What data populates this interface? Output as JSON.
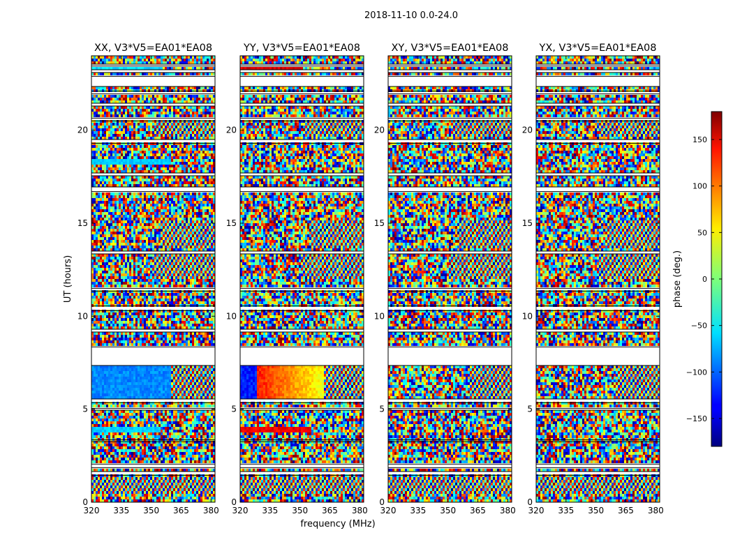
{
  "figure_title": "2018-11-10 0.0-24.0",
  "chart_data": {
    "type": "heatmap",
    "title": "2018-11-10 0.0-24.0",
    "xlabel": "frequency (MHz)",
    "ylabel": "UT (hours)",
    "xlim": [
      320,
      382
    ],
    "ylim": [
      0,
      24
    ],
    "x_ticks": [
      320,
      335,
      350,
      365,
      380
    ],
    "y_ticks": [
      0,
      5,
      10,
      15,
      20
    ],
    "panels": [
      {
        "title": "XX, V3*V5=EA01*EA08",
        "pol": "XX"
      },
      {
        "title": "YY, V3*V5=EA01*EA08",
        "pol": "YY"
      },
      {
        "title": "XY, V3*V5=EA01*EA08",
        "pol": "XY"
      },
      {
        "title": "YX, V3*V5=EA01*EA08",
        "pol": "YX"
      }
    ],
    "flagged_intervals_hours": [
      [
        1.45,
        1.65
      ],
      [
        1.85,
        2.05
      ],
      [
        3.25,
        3.35
      ],
      [
        4.95,
        5.05
      ],
      [
        5.35,
        5.55
      ],
      [
        7.35,
        8.35
      ],
      [
        9.15,
        9.3
      ],
      [
        10.3,
        10.55
      ],
      [
        11.35,
        11.5
      ],
      [
        13.35,
        13.5
      ],
      [
        16.7,
        16.95
      ],
      [
        17.55,
        17.7
      ],
      [
        19.3,
        19.5
      ],
      [
        20.5,
        20.65
      ],
      [
        21.3,
        21.45
      ],
      [
        21.95,
        22.1
      ],
      [
        22.35,
        22.9
      ],
      [
        23.1,
        23.25
      ],
      [
        23.45,
        23.55
      ]
    ],
    "colorbar": {
      "label": "phase (deg.)",
      "range": [
        -180,
        180
      ],
      "ticks": [
        150,
        100,
        50,
        0,
        -50,
        -100,
        -150
      ],
      "tick_labels": [
        "150",
        "100",
        "50",
        "0",
        "−50",
        "−100",
        "−150"
      ],
      "colormap": "jet"
    }
  }
}
